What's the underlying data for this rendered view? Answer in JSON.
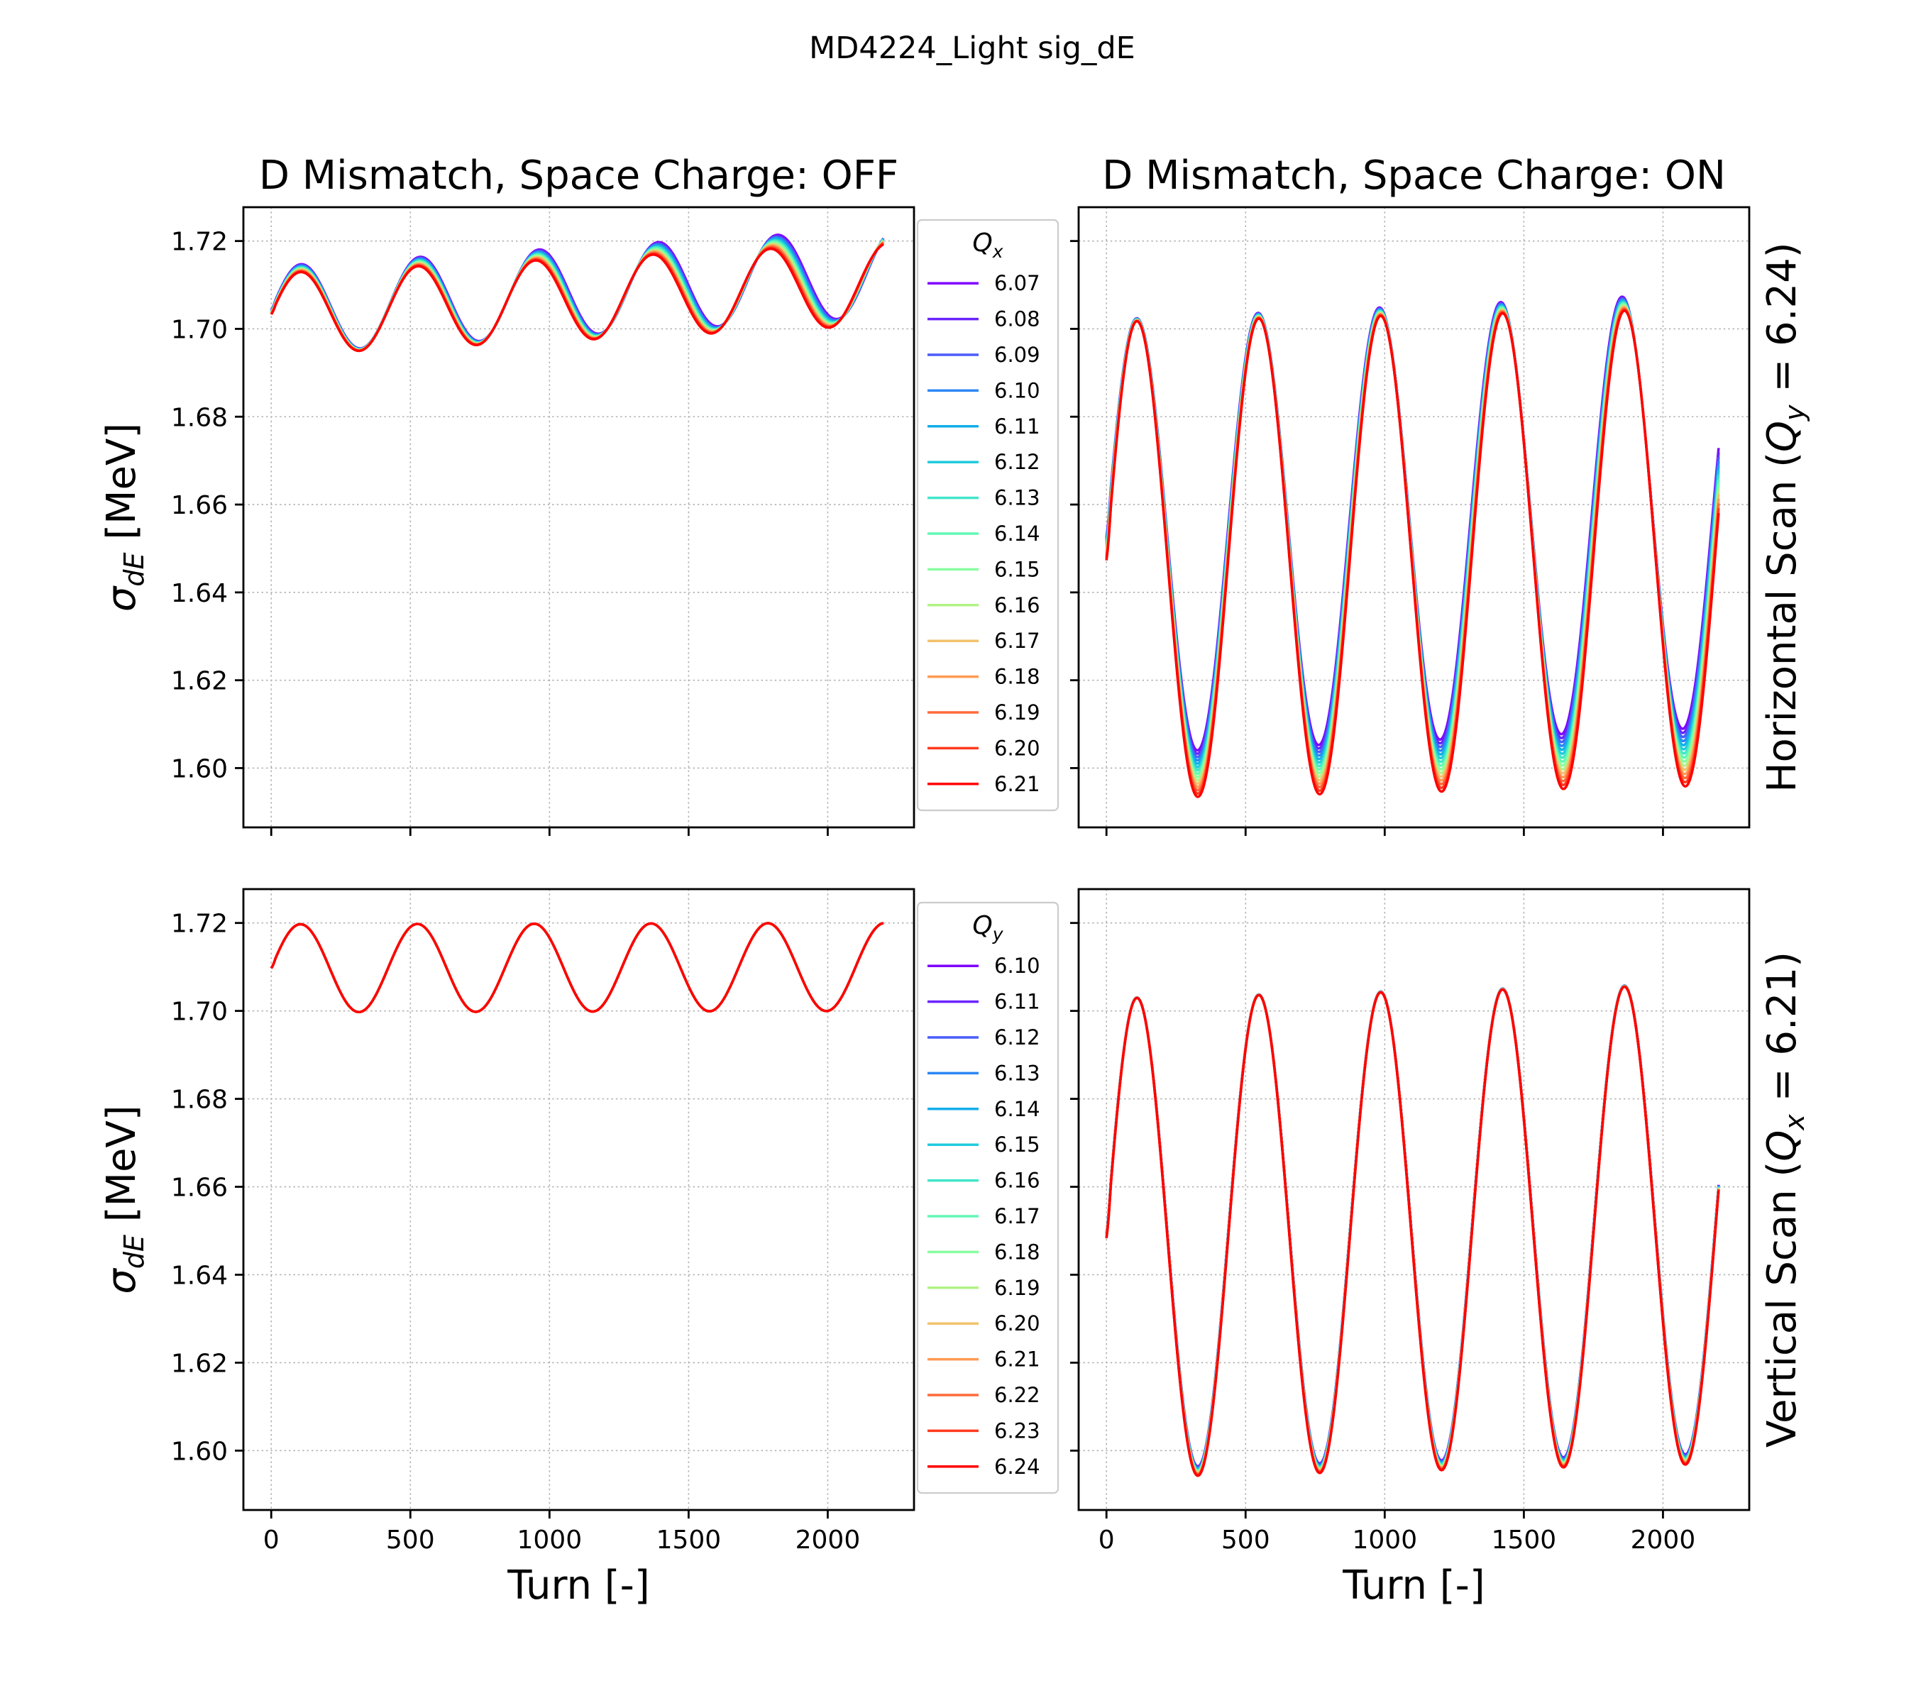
{
  "figure": {
    "suptitle": "MD4224_Light sig_dE"
  },
  "colors": {
    "scan_palette_start": "#8000ff",
    "scan_palette_end": "#ff0000",
    "grid": "#b0b0b0",
    "frame": "#000000"
  },
  "chart_data": [
    {
      "type": "line",
      "panel": "top-left",
      "title": "D Mismatch, Space Charge: OFF",
      "xlabel": "",
      "ylabel": "σ_dE [MeV]",
      "ylabel_main": "σ",
      "ylabel_sub": "dE",
      "ylabel_unit": " [MeV]",
      "row_label": "",
      "xlim": [
        -100,
        2310
      ],
      "ylim": [
        1.5865,
        1.7277
      ],
      "x_ticks": [
        0,
        500,
        1000,
        1500,
        2000
      ],
      "x_tick_labels": [],
      "y_ticks": [
        1.6,
        1.62,
        1.64,
        1.66,
        1.68,
        1.7,
        1.72
      ],
      "y_tick_labels": [
        "1.60",
        "1.62",
        "1.64",
        "1.66",
        "1.68",
        "1.70",
        "1.72"
      ],
      "grid": true,
      "legend": {
        "position": "outside-right",
        "title_main": "Q",
        "title_sub": "x",
        "entries": [
          "6.07",
          "6.08",
          "6.09",
          "6.10",
          "6.11",
          "6.12",
          "6.13",
          "6.14",
          "6.15",
          "6.16",
          "6.17",
          "6.18",
          "6.19",
          "6.20",
          "6.21"
        ]
      },
      "x_range": [
        0,
        2200
      ],
      "model": {
        "baseline_start": [
          1.7043,
          1.7033
        ],
        "baseline_end": [
          1.7129,
          1.7102
        ],
        "amplitude": [
          0.01,
          0.0093
        ],
        "period": [
          428,
          422
        ],
        "phase": [
          0,
          0
        ],
        "onset": 15
      },
      "series": [
        {
          "name": "6.07",
          "color": "#8000ff"
        },
        {
          "name": "6.08",
          "color": "#6a23fe"
        },
        {
          "name": "6.09",
          "color": "#4a5cfa"
        },
        {
          "name": "6.10",
          "color": "#2c86f4"
        },
        {
          "name": "6.11",
          "color": "#12aeea"
        },
        {
          "name": "6.12",
          "color": "#20cbdd"
        },
        {
          "name": "6.13",
          "color": "#42e5ca"
        },
        {
          "name": "6.14",
          "color": "#62f7b6"
        },
        {
          "name": "6.15",
          "color": "#88feA0"
        },
        {
          "name": "6.16",
          "color": "#b2f285"
        },
        {
          "name": "6.17",
          "color": "#f2c26c"
        },
        {
          "name": "6.18",
          "color": "#ff9a52"
        },
        {
          "name": "6.19",
          "color": "#ff6a3a"
        },
        {
          "name": "6.20",
          "color": "#ff3a1e"
        },
        {
          "name": "6.21",
          "color": "#ff0000"
        }
      ]
    },
    {
      "type": "line",
      "panel": "top-right",
      "title": "D Mismatch, Space Charge: ON",
      "xlabel": "",
      "ylabel": "",
      "row_label": "Horizontal Scan (Q_y = 6.24)",
      "row_label_pre": "Horizontal Scan (",
      "row_label_main": "Q",
      "row_label_sub": "y",
      "row_label_post": " = 6.24)",
      "xlim": [
        -100,
        2310
      ],
      "ylim": [
        1.5865,
        1.7277
      ],
      "x_ticks": [
        0,
        500,
        1000,
        1500,
        2000
      ],
      "x_tick_labels": [],
      "y_ticks": [
        1.6,
        1.62,
        1.64,
        1.66,
        1.68,
        1.7,
        1.72
      ],
      "y_tick_labels": [],
      "grid": true,
      "x_range": [
        0,
        2200
      ],
      "model": {
        "baseline_start": [
          1.6526,
          1.6473
        ],
        "baseline_end": [
          1.6588,
          1.6503
        ],
        "amplitude": [
          0.0495,
          0.0543
        ],
        "period": [
          436,
          438
        ],
        "phase": [
          0,
          0
        ],
        "onset": 15
      },
      "series": [
        {
          "name": "6.07",
          "color": "#8000ff"
        },
        {
          "name": "6.08",
          "color": "#6a23fe"
        },
        {
          "name": "6.09",
          "color": "#4a5cfa"
        },
        {
          "name": "6.10",
          "color": "#2c86f4"
        },
        {
          "name": "6.11",
          "color": "#12aeea"
        },
        {
          "name": "6.12",
          "color": "#20cbdd"
        },
        {
          "name": "6.13",
          "color": "#42e5ca"
        },
        {
          "name": "6.14",
          "color": "#62f7b6"
        },
        {
          "name": "6.15",
          "color": "#88fea0"
        },
        {
          "name": "6.16",
          "color": "#b2f285"
        },
        {
          "name": "6.17",
          "color": "#f2c26c"
        },
        {
          "name": "6.18",
          "color": "#ff9a52"
        },
        {
          "name": "6.19",
          "color": "#ff6a3a"
        },
        {
          "name": "6.20",
          "color": "#ff3a1e"
        },
        {
          "name": "6.21",
          "color": "#ff0000"
        }
      ]
    },
    {
      "type": "line",
      "panel": "bottom-left",
      "title": "",
      "xlabel": "Turn [-]",
      "ylabel": "σ_dE [MeV]",
      "ylabel_main": "σ",
      "ylabel_sub": "dE",
      "ylabel_unit": " [MeV]",
      "row_label": "",
      "xlim": [
        -100,
        2310
      ],
      "ylim": [
        1.5865,
        1.7277
      ],
      "x_ticks": [
        0,
        500,
        1000,
        1500,
        2000
      ],
      "x_tick_labels": [
        "0",
        "500",
        "1000",
        "1500",
        "2000"
      ],
      "y_ticks": [
        1.6,
        1.62,
        1.64,
        1.66,
        1.68,
        1.7,
        1.72
      ],
      "y_tick_labels": [
        "1.60",
        "1.62",
        "1.64",
        "1.66",
        "1.68",
        "1.70",
        "1.72"
      ],
      "grid": true,
      "legend": {
        "position": "outside-right",
        "title_main": "Q",
        "title_sub": "y",
        "entries": [
          "6.10",
          "6.11",
          "6.12",
          "6.13",
          "6.14",
          "6.15",
          "6.16",
          "6.17",
          "6.18",
          "6.19",
          "6.20",
          "6.21",
          "6.22",
          "6.23",
          "6.24"
        ]
      },
      "x_range": [
        0,
        2200
      ],
      "model": {
        "baseline_start": [
          1.7097,
          1.7097
        ],
        "baseline_end": [
          1.71,
          1.71
        ],
        "amplitude": [
          0.01,
          0.01
        ],
        "period": [
          420,
          420
        ],
        "phase": [
          0,
          0
        ],
        "onset": 15
      },
      "series": [
        {
          "name": "6.10",
          "color": "#8000ff"
        },
        {
          "name": "6.11",
          "color": "#6a23fe"
        },
        {
          "name": "6.12",
          "color": "#4a5cfa"
        },
        {
          "name": "6.13",
          "color": "#2c86f4"
        },
        {
          "name": "6.14",
          "color": "#12aeea"
        },
        {
          "name": "6.15",
          "color": "#20cbdd"
        },
        {
          "name": "6.16",
          "color": "#42e5ca"
        },
        {
          "name": "6.17",
          "color": "#62f7b6"
        },
        {
          "name": "6.18",
          "color": "#88fea0"
        },
        {
          "name": "6.19",
          "color": "#b2f285"
        },
        {
          "name": "6.20",
          "color": "#f2c26c"
        },
        {
          "name": "6.21",
          "color": "#ff9a52"
        },
        {
          "name": "6.22",
          "color": "#ff6a3a"
        },
        {
          "name": "6.23",
          "color": "#ff3a1e"
        },
        {
          "name": "6.24",
          "color": "#ff0000"
        }
      ]
    },
    {
      "type": "line",
      "panel": "bottom-right",
      "title": "",
      "xlabel": "Turn [-]",
      "ylabel": "",
      "row_label": "Vertical Scan (Q_x = 6.21)",
      "row_label_pre": "Vertical Scan (",
      "row_label_main": "Q",
      "row_label_sub": "x",
      "row_label_post": " = 6.21)",
      "xlim": [
        -100,
        2310
      ],
      "ylim": [
        1.5865,
        1.7277
      ],
      "x_ticks": [
        0,
        500,
        1000,
        1500,
        2000
      ],
      "x_tick_labels": [
        "0",
        "500",
        "1000",
        "1500",
        "2000"
      ],
      "y_ticks": [
        1.6,
        1.62,
        1.64,
        1.66,
        1.68,
        1.7,
        1.72
      ],
      "y_tick_labels": [],
      "grid": true,
      "x_range": [
        0,
        2200
      ],
      "model": {
        "baseline_start": [
          1.6494,
          1.6483
        ],
        "baseline_end": [
          1.6528,
          1.6515
        ],
        "amplitude": [
          0.0535,
          0.0545
        ],
        "period": [
          438,
          438
        ],
        "phase": [
          0,
          0
        ],
        "onset": 15
      },
      "series": [
        {
          "name": "6.10",
          "color": "#8000ff"
        },
        {
          "name": "6.11",
          "color": "#6a23fe"
        },
        {
          "name": "6.12",
          "color": "#4a5cfa"
        },
        {
          "name": "6.13",
          "color": "#2c86f4"
        },
        {
          "name": "6.14",
          "color": "#12aeea"
        },
        {
          "name": "6.15",
          "color": "#20cbdd"
        },
        {
          "name": "6.16",
          "color": "#42e5ca"
        },
        {
          "name": "6.17",
          "color": "#62f7b6"
        },
        {
          "name": "6.18",
          "color": "#88fea0"
        },
        {
          "name": "6.19",
          "color": "#b2f285"
        },
        {
          "name": "6.20",
          "color": "#f2c26c"
        },
        {
          "name": "6.21",
          "color": "#ff9a52"
        },
        {
          "name": "6.22",
          "color": "#ff6a3a"
        },
        {
          "name": "6.23",
          "color": "#ff3a1e"
        },
        {
          "name": "6.24",
          "color": "#ff0000"
        }
      ]
    }
  ]
}
